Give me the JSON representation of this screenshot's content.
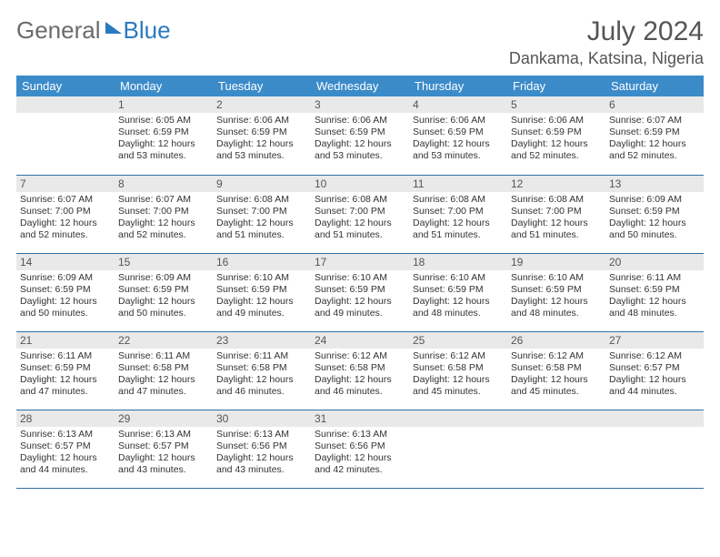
{
  "brand": {
    "part1": "General",
    "part2": "Blue"
  },
  "title": "July 2024",
  "location": "Dankama, Katsina, Nigeria",
  "colors": {
    "header_bg": "#3b8bc9",
    "header_text": "#ffffff",
    "daynum_bg": "#e9e9e9",
    "row_divider": "#2f6fa6",
    "brand_blue": "#2a7ac0",
    "text": "#333333"
  },
  "weekdays": [
    "Sunday",
    "Monday",
    "Tuesday",
    "Wednesday",
    "Thursday",
    "Friday",
    "Saturday"
  ],
  "weeks": [
    [
      null,
      {
        "n": "1",
        "sr": "Sunrise: 6:05 AM",
        "ss": "Sunset: 6:59 PM",
        "d1": "Daylight: 12 hours",
        "d2": "and 53 minutes."
      },
      {
        "n": "2",
        "sr": "Sunrise: 6:06 AM",
        "ss": "Sunset: 6:59 PM",
        "d1": "Daylight: 12 hours",
        "d2": "and 53 minutes."
      },
      {
        "n": "3",
        "sr": "Sunrise: 6:06 AM",
        "ss": "Sunset: 6:59 PM",
        "d1": "Daylight: 12 hours",
        "d2": "and 53 minutes."
      },
      {
        "n": "4",
        "sr": "Sunrise: 6:06 AM",
        "ss": "Sunset: 6:59 PM",
        "d1": "Daylight: 12 hours",
        "d2": "and 53 minutes."
      },
      {
        "n": "5",
        "sr": "Sunrise: 6:06 AM",
        "ss": "Sunset: 6:59 PM",
        "d1": "Daylight: 12 hours",
        "d2": "and 52 minutes."
      },
      {
        "n": "6",
        "sr": "Sunrise: 6:07 AM",
        "ss": "Sunset: 6:59 PM",
        "d1": "Daylight: 12 hours",
        "d2": "and 52 minutes."
      }
    ],
    [
      {
        "n": "7",
        "sr": "Sunrise: 6:07 AM",
        "ss": "Sunset: 7:00 PM",
        "d1": "Daylight: 12 hours",
        "d2": "and 52 minutes."
      },
      {
        "n": "8",
        "sr": "Sunrise: 6:07 AM",
        "ss": "Sunset: 7:00 PM",
        "d1": "Daylight: 12 hours",
        "d2": "and 52 minutes."
      },
      {
        "n": "9",
        "sr": "Sunrise: 6:08 AM",
        "ss": "Sunset: 7:00 PM",
        "d1": "Daylight: 12 hours",
        "d2": "and 51 minutes."
      },
      {
        "n": "10",
        "sr": "Sunrise: 6:08 AM",
        "ss": "Sunset: 7:00 PM",
        "d1": "Daylight: 12 hours",
        "d2": "and 51 minutes."
      },
      {
        "n": "11",
        "sr": "Sunrise: 6:08 AM",
        "ss": "Sunset: 7:00 PM",
        "d1": "Daylight: 12 hours",
        "d2": "and 51 minutes."
      },
      {
        "n": "12",
        "sr": "Sunrise: 6:08 AM",
        "ss": "Sunset: 7:00 PM",
        "d1": "Daylight: 12 hours",
        "d2": "and 51 minutes."
      },
      {
        "n": "13",
        "sr": "Sunrise: 6:09 AM",
        "ss": "Sunset: 6:59 PM",
        "d1": "Daylight: 12 hours",
        "d2": "and 50 minutes."
      }
    ],
    [
      {
        "n": "14",
        "sr": "Sunrise: 6:09 AM",
        "ss": "Sunset: 6:59 PM",
        "d1": "Daylight: 12 hours",
        "d2": "and 50 minutes."
      },
      {
        "n": "15",
        "sr": "Sunrise: 6:09 AM",
        "ss": "Sunset: 6:59 PM",
        "d1": "Daylight: 12 hours",
        "d2": "and 50 minutes."
      },
      {
        "n": "16",
        "sr": "Sunrise: 6:10 AM",
        "ss": "Sunset: 6:59 PM",
        "d1": "Daylight: 12 hours",
        "d2": "and 49 minutes."
      },
      {
        "n": "17",
        "sr": "Sunrise: 6:10 AM",
        "ss": "Sunset: 6:59 PM",
        "d1": "Daylight: 12 hours",
        "d2": "and 49 minutes."
      },
      {
        "n": "18",
        "sr": "Sunrise: 6:10 AM",
        "ss": "Sunset: 6:59 PM",
        "d1": "Daylight: 12 hours",
        "d2": "and 48 minutes."
      },
      {
        "n": "19",
        "sr": "Sunrise: 6:10 AM",
        "ss": "Sunset: 6:59 PM",
        "d1": "Daylight: 12 hours",
        "d2": "and 48 minutes."
      },
      {
        "n": "20",
        "sr": "Sunrise: 6:11 AM",
        "ss": "Sunset: 6:59 PM",
        "d1": "Daylight: 12 hours",
        "d2": "and 48 minutes."
      }
    ],
    [
      {
        "n": "21",
        "sr": "Sunrise: 6:11 AM",
        "ss": "Sunset: 6:59 PM",
        "d1": "Daylight: 12 hours",
        "d2": "and 47 minutes."
      },
      {
        "n": "22",
        "sr": "Sunrise: 6:11 AM",
        "ss": "Sunset: 6:58 PM",
        "d1": "Daylight: 12 hours",
        "d2": "and 47 minutes."
      },
      {
        "n": "23",
        "sr": "Sunrise: 6:11 AM",
        "ss": "Sunset: 6:58 PM",
        "d1": "Daylight: 12 hours",
        "d2": "and 46 minutes."
      },
      {
        "n": "24",
        "sr": "Sunrise: 6:12 AM",
        "ss": "Sunset: 6:58 PM",
        "d1": "Daylight: 12 hours",
        "d2": "and 46 minutes."
      },
      {
        "n": "25",
        "sr": "Sunrise: 6:12 AM",
        "ss": "Sunset: 6:58 PM",
        "d1": "Daylight: 12 hours",
        "d2": "and 45 minutes."
      },
      {
        "n": "26",
        "sr": "Sunrise: 6:12 AM",
        "ss": "Sunset: 6:58 PM",
        "d1": "Daylight: 12 hours",
        "d2": "and 45 minutes."
      },
      {
        "n": "27",
        "sr": "Sunrise: 6:12 AM",
        "ss": "Sunset: 6:57 PM",
        "d1": "Daylight: 12 hours",
        "d2": "and 44 minutes."
      }
    ],
    [
      {
        "n": "28",
        "sr": "Sunrise: 6:13 AM",
        "ss": "Sunset: 6:57 PM",
        "d1": "Daylight: 12 hours",
        "d2": "and 44 minutes."
      },
      {
        "n": "29",
        "sr": "Sunrise: 6:13 AM",
        "ss": "Sunset: 6:57 PM",
        "d1": "Daylight: 12 hours",
        "d2": "and 43 minutes."
      },
      {
        "n": "30",
        "sr": "Sunrise: 6:13 AM",
        "ss": "Sunset: 6:56 PM",
        "d1": "Daylight: 12 hours",
        "d2": "and 43 minutes."
      },
      {
        "n": "31",
        "sr": "Sunrise: 6:13 AM",
        "ss": "Sunset: 6:56 PM",
        "d1": "Daylight: 12 hours",
        "d2": "and 42 minutes."
      },
      null,
      null,
      null
    ]
  ]
}
